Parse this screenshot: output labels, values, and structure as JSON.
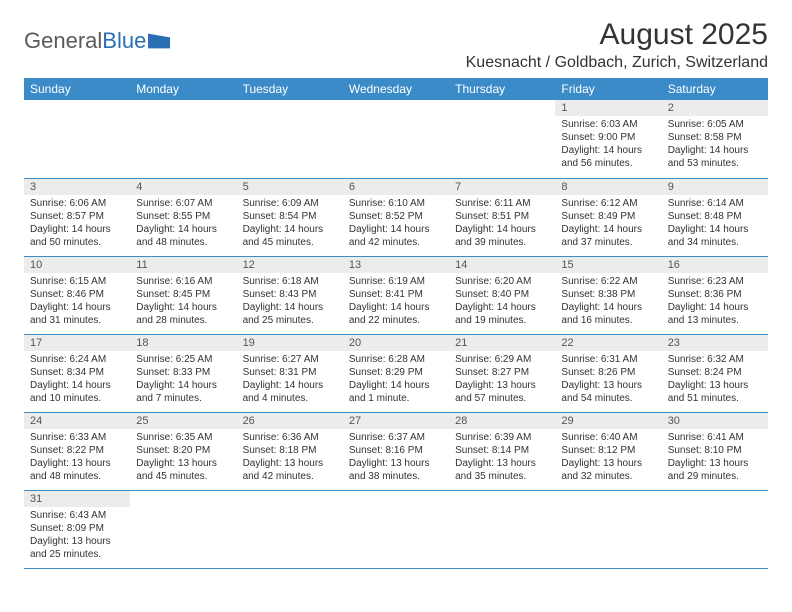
{
  "logo": {
    "text1": "General",
    "text2": "Blue"
  },
  "title": "August 2025",
  "location": "Kuesnacht / Goldbach, Zurich, Switzerland",
  "colors": {
    "header_bg": "#3b8bc9",
    "header_fg": "#ffffff",
    "row_divider": "#3b8bc9",
    "daynum_bg": "#ececec",
    "logo_gray": "#5a5a5a",
    "logo_blue": "#2a6fb5"
  },
  "weekdays": [
    "Sunday",
    "Monday",
    "Tuesday",
    "Wednesday",
    "Thursday",
    "Friday",
    "Saturday"
  ],
  "layout": {
    "first_weekday_index": 5,
    "days_in_month": 31
  },
  "days": {
    "1": {
      "sunrise": "6:03 AM",
      "sunset": "9:00 PM",
      "daylight": "14 hours and 56 minutes."
    },
    "2": {
      "sunrise": "6:05 AM",
      "sunset": "8:58 PM",
      "daylight": "14 hours and 53 minutes."
    },
    "3": {
      "sunrise": "6:06 AM",
      "sunset": "8:57 PM",
      "daylight": "14 hours and 50 minutes."
    },
    "4": {
      "sunrise": "6:07 AM",
      "sunset": "8:55 PM",
      "daylight": "14 hours and 48 minutes."
    },
    "5": {
      "sunrise": "6:09 AM",
      "sunset": "8:54 PM",
      "daylight": "14 hours and 45 minutes."
    },
    "6": {
      "sunrise": "6:10 AM",
      "sunset": "8:52 PM",
      "daylight": "14 hours and 42 minutes."
    },
    "7": {
      "sunrise": "6:11 AM",
      "sunset": "8:51 PM",
      "daylight": "14 hours and 39 minutes."
    },
    "8": {
      "sunrise": "6:12 AM",
      "sunset": "8:49 PM",
      "daylight": "14 hours and 37 minutes."
    },
    "9": {
      "sunrise": "6:14 AM",
      "sunset": "8:48 PM",
      "daylight": "14 hours and 34 minutes."
    },
    "10": {
      "sunrise": "6:15 AM",
      "sunset": "8:46 PM",
      "daylight": "14 hours and 31 minutes."
    },
    "11": {
      "sunrise": "6:16 AM",
      "sunset": "8:45 PM",
      "daylight": "14 hours and 28 minutes."
    },
    "12": {
      "sunrise": "6:18 AM",
      "sunset": "8:43 PM",
      "daylight": "14 hours and 25 minutes."
    },
    "13": {
      "sunrise": "6:19 AM",
      "sunset": "8:41 PM",
      "daylight": "14 hours and 22 minutes."
    },
    "14": {
      "sunrise": "6:20 AM",
      "sunset": "8:40 PM",
      "daylight": "14 hours and 19 minutes."
    },
    "15": {
      "sunrise": "6:22 AM",
      "sunset": "8:38 PM",
      "daylight": "14 hours and 16 minutes."
    },
    "16": {
      "sunrise": "6:23 AM",
      "sunset": "8:36 PM",
      "daylight": "14 hours and 13 minutes."
    },
    "17": {
      "sunrise": "6:24 AM",
      "sunset": "8:34 PM",
      "daylight": "14 hours and 10 minutes."
    },
    "18": {
      "sunrise": "6:25 AM",
      "sunset": "8:33 PM",
      "daylight": "14 hours and 7 minutes."
    },
    "19": {
      "sunrise": "6:27 AM",
      "sunset": "8:31 PM",
      "daylight": "14 hours and 4 minutes."
    },
    "20": {
      "sunrise": "6:28 AM",
      "sunset": "8:29 PM",
      "daylight": "14 hours and 1 minute."
    },
    "21": {
      "sunrise": "6:29 AM",
      "sunset": "8:27 PM",
      "daylight": "13 hours and 57 minutes."
    },
    "22": {
      "sunrise": "6:31 AM",
      "sunset": "8:26 PM",
      "daylight": "13 hours and 54 minutes."
    },
    "23": {
      "sunrise": "6:32 AM",
      "sunset": "8:24 PM",
      "daylight": "13 hours and 51 minutes."
    },
    "24": {
      "sunrise": "6:33 AM",
      "sunset": "8:22 PM",
      "daylight": "13 hours and 48 minutes."
    },
    "25": {
      "sunrise": "6:35 AM",
      "sunset": "8:20 PM",
      "daylight": "13 hours and 45 minutes."
    },
    "26": {
      "sunrise": "6:36 AM",
      "sunset": "8:18 PM",
      "daylight": "13 hours and 42 minutes."
    },
    "27": {
      "sunrise": "6:37 AM",
      "sunset": "8:16 PM",
      "daylight": "13 hours and 38 minutes."
    },
    "28": {
      "sunrise": "6:39 AM",
      "sunset": "8:14 PM",
      "daylight": "13 hours and 35 minutes."
    },
    "29": {
      "sunrise": "6:40 AM",
      "sunset": "8:12 PM",
      "daylight": "13 hours and 32 minutes."
    },
    "30": {
      "sunrise": "6:41 AM",
      "sunset": "8:10 PM",
      "daylight": "13 hours and 29 minutes."
    },
    "31": {
      "sunrise": "6:43 AM",
      "sunset": "8:09 PM",
      "daylight": "13 hours and 25 minutes."
    }
  },
  "labels": {
    "sunrise": "Sunrise:",
    "sunset": "Sunset:",
    "daylight": "Daylight:"
  }
}
